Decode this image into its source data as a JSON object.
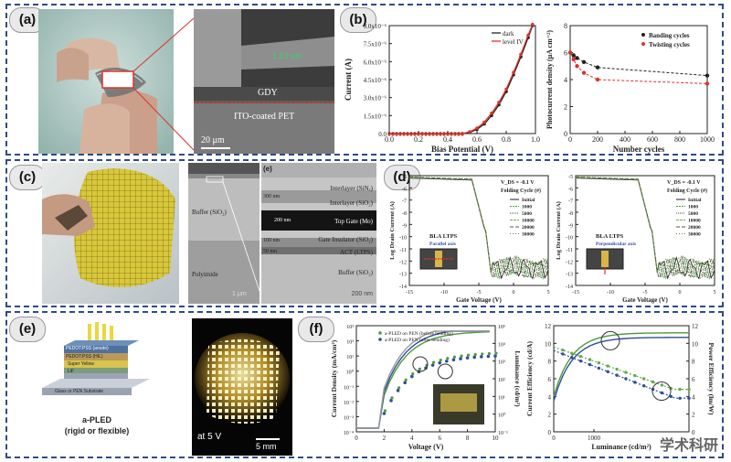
{
  "panels": {
    "a": {
      "label": "(a)",
      "sem": {
        "top_text": "1.13 μm",
        "gdy": "GDY",
        "ito": "ITO-coated PET",
        "scale": "20 μm"
      }
    },
    "b": {
      "label": "(b)",
      "left_chart": {
        "type": "line",
        "xlabel": "Bias Potential (V)",
        "ylabel": "Current (A)",
        "xlim": [
          0,
          1.0
        ],
        "ylim": [
          0,
          9e-06
        ],
        "x_ticks": [
          "0.0",
          "0.2",
          "0.4",
          "0.6",
          "0.8",
          "1.0"
        ],
        "y_ticks": [
          "0.0",
          "1.5x10⁻⁶",
          "3.0x10⁻⁶",
          "4.5x10⁻⁶",
          "6.0x10⁻⁶",
          "7.5x10⁻⁶",
          "9.0x10⁻⁶"
        ],
        "series": [
          {
            "name": "dark",
            "color": "#222222",
            "x": [
              0.5,
              0.55,
              0.6,
              0.65,
              0.7,
              0.75,
              0.8,
              0.85,
              0.9,
              0.95,
              0.98
            ],
            "y": [
              0,
              1e-07,
              3.5e-07,
              8e-07,
              1.5e-06,
              2.4e-06,
              3.5e-06,
              4.9e-06,
              6.4e-06,
              8e-06,
              9e-06
            ]
          },
          {
            "name": "level IV",
            "color": "#d9342b",
            "x": [
              0.5,
              0.55,
              0.6,
              0.65,
              0.7,
              0.75,
              0.8,
              0.85,
              0.9,
              0.95,
              0.98
            ],
            "y": [
              0,
              1.5e-07,
              4.5e-07,
              9.5e-07,
              1.7e-06,
              2.6e-06,
              3.7e-06,
              5.1e-06,
              6.6e-06,
              8.2e-06,
              9.1e-06
            ]
          }
        ]
      },
      "right_chart": {
        "type": "line",
        "xlabel": "Number cycles",
        "ylabel": "Photocurrent density (μA cm⁻²)",
        "xlim": [
          0,
          1000
        ],
        "ylim": [
          0,
          8
        ],
        "x_ticks": [
          "0",
          "200",
          "400",
          "600",
          "800",
          "1000"
        ],
        "y_ticks": [
          "0",
          "2",
          "4",
          "6",
          "8"
        ],
        "series": [
          {
            "name": "Banding cycles",
            "color": "#222222",
            "x": [
              0,
              25,
              50,
              100,
              200,
              1000
            ],
            "y": [
              6.0,
              5.8,
              5.6,
              5.3,
              4.9,
              4.3
            ]
          },
          {
            "name": "Twisting cycles",
            "color": "#d9342b",
            "x": [
              0,
              25,
              50,
              100,
              200,
              1000
            ],
            "y": [
              6.0,
              5.5,
              5.0,
              4.5,
              4.0,
              3.7
            ]
          }
        ]
      }
    },
    "c": {
      "label": "(c)",
      "layers_left": {
        "buffer": "Buffer (SiO₂)",
        "poly": "Polyimide",
        "scale": "1 μm"
      },
      "layers_right": {
        "tag": "(e)",
        "interlayer1": "Interlayer (SiNₓ)",
        "interlayer2": "Interlayer (SiO₂)",
        "topgate": "Top Gate (Mo)",
        "gate_ins": "Gate Insulator (SiO₂)",
        "act": "ACT (LTPS)",
        "buffer": "Buffer (SiO₂)",
        "d1": "300 nm",
        "d2": "200 nm",
        "d3": "100 nm",
        "d4": "50 nm",
        "scale": "200 nm"
      }
    },
    "d": {
      "label": "(d)",
      "charts": [
        {
          "type": "line",
          "title_vds": "V_DS = -0.1 V",
          "legend_title": "Folding Cycle (#)",
          "device": "BLA LTPS",
          "axis_note": "Parallel axis",
          "xlabel": "Gate Voltage (V)",
          "ylabel": "Log Drain Current (A)",
          "xlim": [
            -15,
            5
          ],
          "ylim": [
            -14,
            -5
          ],
          "x_ticks": [
            "-15",
            "-10",
            "-5",
            "0",
            "5"
          ],
          "y_ticks": [
            "-5",
            "-6",
            "-7",
            "-8",
            "-9",
            "-10",
            "-11",
            "-12",
            "-13",
            "-14"
          ],
          "series_names": [
            "Initial",
            "1000",
            "5000",
            "10000",
            "20000",
            "30000"
          ]
        },
        {
          "type": "line",
          "title_vds": "V_DS = -0.1 V",
          "legend_title": "Folding Cycle (#)",
          "device": "BLA LTPS",
          "axis_note": "Perpendicular axis",
          "xlabel": "Gate Voltage (V)",
          "ylabel": "Log Drain Current (A)",
          "xlim": [
            -15,
            5
          ],
          "ylim": [
            -14,
            -5
          ],
          "x_ticks": [
            "-15",
            "-10",
            "-5",
            "0",
            "5"
          ],
          "y_ticks": [
            "-5",
            "-6",
            "-7",
            "-8",
            "-9",
            "-10",
            "-11",
            "-12",
            "-13",
            "-14"
          ],
          "series_names": [
            "Initial",
            "1000",
            "5000",
            "10000",
            "20000",
            "30000"
          ]
        }
      ]
    },
    "e": {
      "label": "(e)",
      "stack_layers": [
        "PEDOT:PSS (anode)",
        "PEDOT:PSS (HIL)",
        "Super Yellow",
        "LiF",
        "Glass or PEN Substrate"
      ],
      "caption1": "a-PLED",
      "caption2": "(rigid or flexible)",
      "voltage": "at 5 V",
      "scale": "5 mm"
    },
    "f": {
      "label": "(f)",
      "left_chart": {
        "type": "line",
        "xlabel": "Voltage (V)",
        "ylabel": "Current Density (mA/cm²)",
        "ylabel_right": "Luminance (cd/m²)",
        "xlim": [
          0,
          10
        ],
        "x_ticks": [
          "0",
          "2",
          "4",
          "6",
          "8",
          "10"
        ],
        "y_ticks": [
          "10⁻⁴",
          "10⁻³",
          "10⁻²",
          "10⁻¹",
          "10⁰",
          "10¹",
          "10²",
          "10³"
        ],
        "y2_ticks": [
          "10⁻¹",
          "10⁰",
          "10¹",
          "10²",
          "10³",
          "10⁴",
          "10⁵"
        ],
        "legend": [
          "a-PLED on PEN (before bending)",
          "a-PLED on PEN (after bending)"
        ]
      },
      "right_chart": {
        "type": "line",
        "xlabel": "Luminance (cd/m²)",
        "ylabel": "Current Efficiency (cd/A)",
        "ylabel_right": "Power Efficiency (lm/W)",
        "x_ticks": [
          "0",
          "1000"
        ],
        "y_ticks": [
          "0",
          "2",
          "4",
          "6",
          "8",
          "10",
          "12"
        ],
        "y2_ticks": [
          "0",
          "2",
          "4",
          "6",
          "8",
          "10",
          "12"
        ]
      }
    }
  },
  "watermark": "学术科研",
  "colors": {
    "border": "#2f4a8a",
    "red": "#d9342b",
    "green": "#4f9a3c",
    "blue": "#2e4f9e"
  }
}
